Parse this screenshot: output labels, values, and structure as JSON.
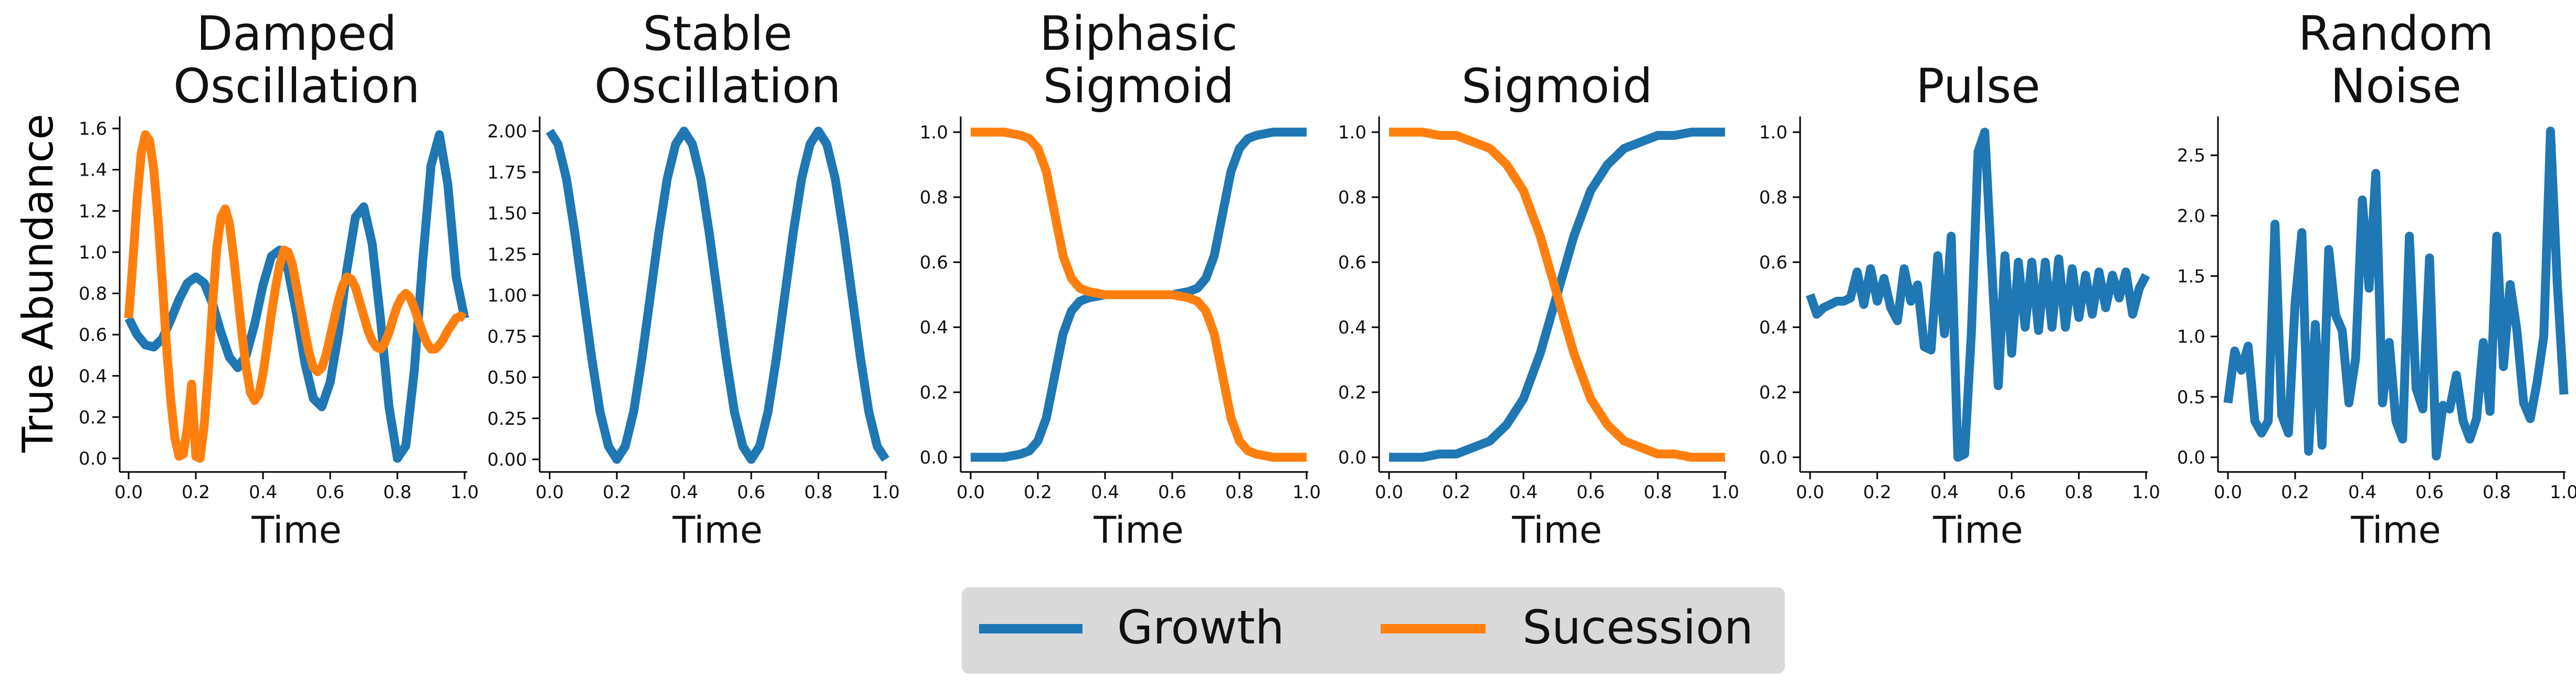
{
  "figure": {
    "ylabel": "True Abundance",
    "legend": {
      "placement": "bottom-center",
      "entries": [
        {
          "label": "Growth",
          "color": "#1f77b4"
        },
        {
          "label": "Sucession",
          "color": "#ff7f0e"
        }
      ]
    }
  },
  "chart_data": [
    {
      "type": "line",
      "title": "Damped\nOscillation",
      "xlabel": "Time",
      "xlim": [
        0,
        1
      ],
      "ylim": [
        0,
        1.6
      ],
      "xticks": [
        0.0,
        0.2,
        0.4,
        0.6,
        0.8,
        1.0
      ],
      "xtick_labels": [
        "0.0",
        "0.2",
        "0.4",
        "0.6",
        "0.8",
        "1.0"
      ],
      "yticks": [
        0,
        0.2,
        0.4,
        0.6,
        0.8,
        1.0,
        1.2,
        1.4,
        1.6
      ],
      "ytick_labels": [
        "0.0",
        "0.2",
        "0.4",
        "0.6",
        "0.8",
        "1.0",
        "1.2",
        "1.4",
        "1.6"
      ],
      "series": [
        {
          "name": "Growth",
          "color": "#1f77b4",
          "x": [
            0,
            0.025,
            0.05,
            0.075,
            0.1,
            0.125,
            0.15,
            0.175,
            0.2,
            0.225,
            0.25,
            0.275,
            0.3,
            0.325,
            0.35,
            0.375,
            0.4,
            0.425,
            0.45,
            0.475,
            0.5,
            0.525,
            0.55,
            0.575,
            0.6,
            0.625,
            0.65,
            0.675,
            0.7,
            0.725,
            0.75,
            0.775,
            0.8,
            0.825,
            0.85,
            0.875,
            0.9,
            0.925,
            0.95,
            0.975,
            1.0
          ],
          "y": [
            0.68,
            0.6,
            0.55,
            0.54,
            0.58,
            0.67,
            0.77,
            0.85,
            0.88,
            0.85,
            0.75,
            0.61,
            0.49,
            0.44,
            0.5,
            0.65,
            0.84,
            0.98,
            1.01,
            0.91,
            0.7,
            0.46,
            0.29,
            0.25,
            0.37,
            0.61,
            0.92,
            1.17,
            1.22,
            1.04,
            0.67,
            0.25,
            0.0,
            0.06,
            0.42,
            0.95,
            1.42,
            1.57,
            1.33,
            0.88,
            0.68
          ]
        },
        {
          "name": "Sucession",
          "color": "#ff7f0e",
          "x": [
            0,
            0.0125,
            0.025,
            0.0375,
            0.05,
            0.0625,
            0.075,
            0.0875,
            0.1,
            0.1125,
            0.125,
            0.1375,
            0.15,
            0.1625,
            0.175,
            0.1875,
            0.2,
            0.2125,
            0.225,
            0.2375,
            0.25,
            0.2625,
            0.275,
            0.2875,
            0.3,
            0.3125,
            0.325,
            0.3375,
            0.35,
            0.3625,
            0.375,
            0.3875,
            0.4,
            0.4125,
            0.425,
            0.4375,
            0.45,
            0.4625,
            0.475,
            0.4875,
            0.5,
            0.5125,
            0.525,
            0.5375,
            0.55,
            0.5625,
            0.575,
            0.5875,
            0.6,
            0.6125,
            0.625,
            0.6375,
            0.65,
            0.6625,
            0.675,
            0.6875,
            0.7,
            0.7125,
            0.725,
            0.7375,
            0.75,
            0.7625,
            0.775,
            0.7875,
            0.8,
            0.8125,
            0.825,
            0.8375,
            0.85,
            0.8625,
            0.875,
            0.8875,
            0.9,
            0.9125,
            0.925,
            0.9375,
            0.95,
            0.9625,
            0.975,
            0.9875,
            1.0
          ],
          "y": [
            0.68,
            0.95,
            1.25,
            1.48,
            1.57,
            1.54,
            1.4,
            1.16,
            0.86,
            0.55,
            0.29,
            0.1,
            0.01,
            0.02,
            0.15,
            0.36,
            0.01,
            0.0,
            0.16,
            0.43,
            0.75,
            1.02,
            1.17,
            1.21,
            1.14,
            0.98,
            0.79,
            0.6,
            0.44,
            0.32,
            0.28,
            0.31,
            0.41,
            0.55,
            0.7,
            0.83,
            0.94,
            1.01,
            1.0,
            0.94,
            0.83,
            0.72,
            0.61,
            0.51,
            0.44,
            0.42,
            0.44,
            0.5,
            0.59,
            0.68,
            0.77,
            0.84,
            0.88,
            0.87,
            0.83,
            0.76,
            0.69,
            0.62,
            0.57,
            0.54,
            0.53,
            0.56,
            0.61,
            0.68,
            0.74,
            0.78,
            0.8,
            0.78,
            0.73,
            0.67,
            0.61,
            0.56,
            0.53,
            0.53,
            0.55,
            0.58,
            0.62,
            0.65,
            0.68,
            0.69,
            0.68
          ]
        }
      ]
    },
    {
      "type": "line",
      "title": "Stable\nOscillation",
      "xlabel": "Time",
      "xlim": [
        0,
        1
      ],
      "ylim": [
        0,
        2
      ],
      "xticks": [
        0.0,
        0.2,
        0.4,
        0.6,
        0.8,
        1.0
      ],
      "xtick_labels": [
        "0.0",
        "0.2",
        "0.4",
        "0.6",
        "0.8",
        "1.0"
      ],
      "yticks": [
        0,
        0.25,
        0.5,
        0.75,
        1.0,
        1.25,
        1.5,
        1.75,
        2.0
      ],
      "ytick_labels": [
        "0.00",
        "0.25",
        "0.50",
        "0.75",
        "1.00",
        "1.25",
        "1.50",
        "1.75",
        "2.00"
      ],
      "series": [
        {
          "name": "Growth",
          "color": "#1f77b4",
          "x": [
            0,
            0.025,
            0.05,
            0.075,
            0.1,
            0.125,
            0.15,
            0.175,
            0.2,
            0.225,
            0.25,
            0.275,
            0.3,
            0.325,
            0.35,
            0.375,
            0.4,
            0.425,
            0.45,
            0.475,
            0.5,
            0.525,
            0.55,
            0.575,
            0.6,
            0.625,
            0.65,
            0.675,
            0.7,
            0.725,
            0.75,
            0.775,
            0.8,
            0.825,
            0.85,
            0.875,
            0.9,
            0.925,
            0.95,
            0.975,
            1.0
          ],
          "y": [
            2.0,
            1.92,
            1.71,
            1.38,
            1.0,
            0.62,
            0.29,
            0.08,
            0.0,
            0.08,
            0.29,
            0.62,
            1.0,
            1.38,
            1.71,
            1.92,
            2.0,
            1.92,
            1.71,
            1.38,
            1.0,
            0.62,
            0.29,
            0.08,
            0.0,
            0.08,
            0.29,
            0.62,
            1.0,
            1.38,
            1.71,
            1.92,
            2.0,
            1.92,
            1.71,
            1.38,
            1.0,
            0.62,
            0.29,
            0.08,
            0.0
          ]
        }
      ]
    },
    {
      "type": "line",
      "title": "Biphasic\nSigmoid",
      "xlabel": "Time",
      "xlim": [
        0,
        1
      ],
      "ylim": [
        0,
        1
      ],
      "xticks": [
        0.0,
        0.2,
        0.4,
        0.6,
        0.8,
        1.0
      ],
      "xtick_labels": [
        "0.0",
        "0.2",
        "0.4",
        "0.6",
        "0.8",
        "1.0"
      ],
      "yticks": [
        0,
        0.2,
        0.4,
        0.6,
        0.8,
        1.0
      ],
      "ytick_labels": [
        "0.0",
        "0.2",
        "0.4",
        "0.6",
        "0.8",
        "1.0"
      ],
      "series": [
        {
          "name": "Growth",
          "color": "#1f77b4",
          "x": [
            0,
            0.05,
            0.1,
            0.15,
            0.175,
            0.2,
            0.225,
            0.25,
            0.275,
            0.3,
            0.325,
            0.35,
            0.4,
            0.45,
            0.5,
            0.55,
            0.6,
            0.65,
            0.675,
            0.7,
            0.725,
            0.75,
            0.775,
            0.8,
            0.825,
            0.85,
            0.9,
            0.95,
            1.0
          ],
          "y": [
            0.0,
            0.0,
            0.0,
            0.01,
            0.02,
            0.05,
            0.12,
            0.25,
            0.38,
            0.45,
            0.48,
            0.49,
            0.5,
            0.5,
            0.5,
            0.5,
            0.5,
            0.51,
            0.52,
            0.55,
            0.62,
            0.75,
            0.88,
            0.95,
            0.98,
            0.99,
            1.0,
            1.0,
            1.0
          ]
        },
        {
          "name": "Sucession",
          "color": "#ff7f0e",
          "x": [
            0,
            0.05,
            0.1,
            0.15,
            0.175,
            0.2,
            0.225,
            0.25,
            0.275,
            0.3,
            0.325,
            0.35,
            0.4,
            0.45,
            0.5,
            0.55,
            0.6,
            0.65,
            0.675,
            0.7,
            0.725,
            0.75,
            0.775,
            0.8,
            0.825,
            0.85,
            0.9,
            0.95,
            1.0
          ],
          "y": [
            1.0,
            1.0,
            1.0,
            0.99,
            0.98,
            0.95,
            0.88,
            0.75,
            0.62,
            0.55,
            0.52,
            0.51,
            0.5,
            0.5,
            0.5,
            0.5,
            0.5,
            0.49,
            0.48,
            0.45,
            0.38,
            0.25,
            0.12,
            0.05,
            0.02,
            0.01,
            0.0,
            0.0,
            0.0
          ]
        }
      ]
    },
    {
      "type": "line",
      "title": "Sigmoid",
      "xlabel": "Time",
      "xlim": [
        0,
        1
      ],
      "ylim": [
        0,
        1
      ],
      "xticks": [
        0.0,
        0.2,
        0.4,
        0.6,
        0.8,
        1.0
      ],
      "xtick_labels": [
        "0.0",
        "0.2",
        "0.4",
        "0.6",
        "0.8",
        "1.0"
      ],
      "yticks": [
        0,
        0.2,
        0.4,
        0.6,
        0.8,
        1.0
      ],
      "ytick_labels": [
        "0.0",
        "0.2",
        "0.4",
        "0.6",
        "0.8",
        "1.0"
      ],
      "series": [
        {
          "name": "Growth",
          "color": "#1f77b4",
          "x": [
            0,
            0.05,
            0.1,
            0.15,
            0.2,
            0.25,
            0.3,
            0.35,
            0.4,
            0.45,
            0.5,
            0.55,
            0.6,
            0.65,
            0.7,
            0.75,
            0.8,
            0.85,
            0.9,
            0.95,
            1.0
          ],
          "y": [
            0.0,
            0.0,
            0.0,
            0.01,
            0.01,
            0.03,
            0.05,
            0.1,
            0.18,
            0.32,
            0.5,
            0.68,
            0.82,
            0.9,
            0.95,
            0.97,
            0.99,
            0.99,
            1.0,
            1.0,
            1.0
          ]
        },
        {
          "name": "Sucession",
          "color": "#ff7f0e",
          "x": [
            0,
            0.05,
            0.1,
            0.15,
            0.2,
            0.25,
            0.3,
            0.35,
            0.4,
            0.45,
            0.5,
            0.55,
            0.6,
            0.65,
            0.7,
            0.75,
            0.8,
            0.85,
            0.9,
            0.95,
            1.0
          ],
          "y": [
            1.0,
            1.0,
            1.0,
            0.99,
            0.99,
            0.97,
            0.95,
            0.9,
            0.82,
            0.68,
            0.5,
            0.32,
            0.18,
            0.1,
            0.05,
            0.03,
            0.01,
            0.01,
            0.0,
            0.0,
            0.0
          ]
        }
      ]
    },
    {
      "type": "line",
      "title": "Pulse",
      "xlabel": "Time",
      "xlim": [
        0,
        1
      ],
      "ylim": [
        0,
        1
      ],
      "xticks": [
        0.0,
        0.2,
        0.4,
        0.6,
        0.8,
        1.0
      ],
      "xtick_labels": [
        "0.0",
        "0.2",
        "0.4",
        "0.6",
        "0.8",
        "1.0"
      ],
      "yticks": [
        0,
        0.2,
        0.4,
        0.6,
        0.8,
        1.0
      ],
      "ytick_labels": [
        "0.0",
        "0.2",
        "0.4",
        "0.6",
        "0.8",
        "1.0"
      ],
      "series": [
        {
          "name": "Growth",
          "color": "#1f77b4",
          "x": [
            0.0,
            0.02,
            0.04,
            0.06,
            0.08,
            0.1,
            0.12,
            0.14,
            0.16,
            0.18,
            0.2,
            0.22,
            0.24,
            0.26,
            0.28,
            0.3,
            0.32,
            0.34,
            0.36,
            0.38,
            0.4,
            0.42,
            0.44,
            0.46,
            0.48,
            0.5,
            0.52,
            0.54,
            0.56,
            0.58,
            0.6,
            0.62,
            0.64,
            0.66,
            0.68,
            0.7,
            0.72,
            0.74,
            0.76,
            0.78,
            0.8,
            0.82,
            0.84,
            0.86,
            0.88,
            0.9,
            0.92,
            0.94,
            0.96,
            0.98,
            1.0
          ],
          "y": [
            0.5,
            0.44,
            0.46,
            0.47,
            0.48,
            0.48,
            0.49,
            0.57,
            0.47,
            0.58,
            0.48,
            0.55,
            0.46,
            0.42,
            0.58,
            0.48,
            0.53,
            0.34,
            0.33,
            0.62,
            0.38,
            0.68,
            0.0,
            0.01,
            0.38,
            0.94,
            1.0,
            0.6,
            0.22,
            0.62,
            0.32,
            0.6,
            0.4,
            0.6,
            0.39,
            0.6,
            0.4,
            0.61,
            0.4,
            0.58,
            0.43,
            0.56,
            0.44,
            0.57,
            0.46,
            0.56,
            0.49,
            0.57,
            0.44,
            0.52,
            0.56
          ]
        }
      ]
    },
    {
      "type": "line",
      "title": "Random\nNoise",
      "xlabel": "Time",
      "xlim": [
        0,
        1
      ],
      "ylim": [
        0,
        2.7
      ],
      "xticks": [
        0.0,
        0.2,
        0.4,
        0.6,
        0.8,
        1.0
      ],
      "xtick_labels": [
        "0.0",
        "0.2",
        "0.4",
        "0.6",
        "0.8",
        "1.0"
      ],
      "yticks": [
        0,
        0.5,
        1.0,
        1.5,
        2.0,
        2.5
      ],
      "ytick_labels": [
        "0.0",
        "0.5",
        "1.0",
        "1.5",
        "2.0",
        "2.5"
      ],
      "series": [
        {
          "name": "Growth",
          "color": "#1f77b4",
          "x": [
            0.0,
            0.02,
            0.04,
            0.06,
            0.08,
            0.1,
            0.12,
            0.14,
            0.16,
            0.18,
            0.2,
            0.22,
            0.24,
            0.26,
            0.28,
            0.3,
            0.32,
            0.34,
            0.36,
            0.38,
            0.4,
            0.42,
            0.44,
            0.46,
            0.48,
            0.5,
            0.52,
            0.54,
            0.56,
            0.58,
            0.6,
            0.62,
            0.64,
            0.66,
            0.68,
            0.7,
            0.72,
            0.74,
            0.76,
            0.78,
            0.8,
            0.82,
            0.84,
            0.86,
            0.88,
            0.9,
            0.92,
            0.94,
            0.96,
            0.98,
            1.0
          ],
          "y": [
            0.45,
            0.88,
            0.72,
            0.92,
            0.3,
            0.2,
            0.3,
            1.93,
            0.35,
            0.2,
            1.28,
            1.86,
            0.05,
            1.1,
            0.1,
            1.72,
            1.18,
            1.05,
            0.45,
            0.82,
            2.13,
            1.4,
            2.35,
            0.45,
            0.95,
            0.3,
            0.15,
            1.83,
            0.57,
            0.4,
            1.65,
            0.01,
            0.43,
            0.4,
            0.68,
            0.3,
            0.15,
            0.32,
            0.95,
            0.38,
            1.83,
            0.75,
            1.43,
            1.05,
            0.45,
            0.32,
            0.62,
            1.0,
            2.7,
            1.45,
            0.52
          ]
        }
      ]
    }
  ]
}
